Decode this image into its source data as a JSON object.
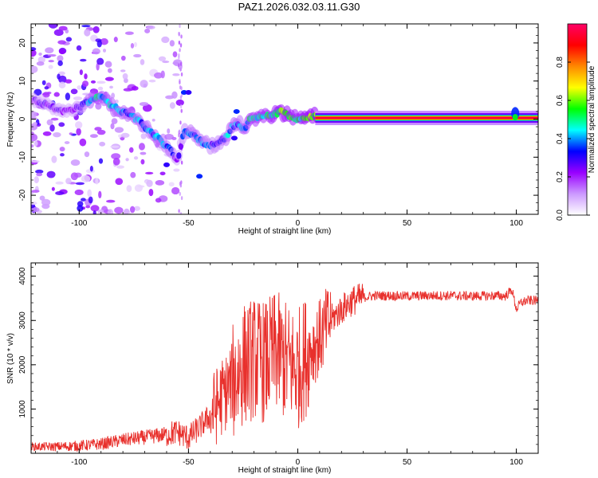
{
  "title": "PAZ1.2026.032.03.11.G30",
  "chart_data": [
    {
      "type": "heatmap",
      "name": "spectrogram",
      "xlabel": "Height of straight line (km)",
      "ylabel": "Frequency (Hz)",
      "xlim": [
        -122,
        110
      ],
      "ylim": [
        -25,
        25
      ],
      "xticks": [
        "-100",
        "-50",
        "0",
        "50",
        "100"
      ],
      "xtick_values": [
        -100,
        -50,
        0,
        50,
        100
      ],
      "yticks": [
        "20",
        "10",
        "0",
        "-10",
        "-20"
      ],
      "ytick_values": [
        20,
        10,
        0,
        -10,
        -20
      ],
      "colorbar": {
        "label": "Normalized spectral amplitude",
        "range": [
          0,
          1
        ],
        "ticks": [
          "0.0",
          "0.2",
          "0.4",
          "0.6",
          "0.8"
        ],
        "tick_values": [
          0.0,
          0.2,
          0.4,
          0.6,
          0.8
        ],
        "colors": [
          "#ffffff",
          "#cc99ff",
          "#9900ff",
          "#0000ff",
          "#00ffff",
          "#00ff00",
          "#ffff00",
          "#ff8800",
          "#ff0000",
          "#ff0066"
        ]
      },
      "ridge": {
        "x": [
          -120,
          -112,
          -105,
          -100,
          -95,
          -92,
          -88,
          -84,
          -80,
          -76,
          -72,
          -68,
          -64,
          -60,
          -57,
          -55,
          -52,
          -48,
          -44,
          -40,
          -36,
          -33,
          -30,
          -27,
          -24,
          -22,
          -20,
          -16,
          -12,
          -8,
          -4,
          0,
          4,
          8,
          20,
          40,
          60,
          80,
          97,
          100,
          103,
          110
        ],
        "freq_hz": [
          5,
          3,
          2,
          3,
          5,
          6,
          5,
          3,
          2,
          1,
          -1,
          -3,
          -5,
          -7,
          -9,
          -11,
          -3,
          -4,
          -6,
          -7,
          -6,
          -5,
          -2,
          -1,
          -3,
          0,
          0,
          1,
          1,
          2,
          1,
          0,
          0,
          1,
          0.5,
          0.5,
          0.5,
          0.5,
          0.5,
          0.5,
          0.5,
          0.5
        ],
        "amplitude": [
          0.25,
          0.25,
          0.25,
          0.3,
          0.45,
          0.5,
          0.45,
          0.45,
          0.4,
          0.45,
          0.4,
          0.4,
          0.45,
          0.4,
          0.35,
          0.25,
          0.35,
          0.4,
          0.4,
          0.35,
          0.35,
          0.4,
          0.45,
          0.4,
          0.45,
          0.5,
          0.5,
          0.55,
          0.55,
          0.6,
          0.6,
          0.55,
          0.6,
          0.65,
          0.9,
          0.95,
          0.95,
          0.95,
          0.9,
          0.55,
          0.9,
          0.9
        ]
      }
    },
    {
      "type": "line",
      "name": "snr",
      "xlabel": "Height of straight line (km)",
      "ylabel": "SNR (10 * v/v)",
      "xlim": [
        -122,
        110
      ],
      "ylim": [
        0,
        4300
      ],
      "xticks": [
        "-100",
        "-50",
        "0",
        "50",
        "100"
      ],
      "xtick_values": [
        -100,
        -50,
        0,
        50,
        100
      ],
      "yticks": [
        "4000",
        "3000",
        "2000",
        "1000"
      ],
      "ytick_values": [
        4000,
        3000,
        2000,
        1000
      ],
      "series": [
        {
          "name": "SNR",
          "color": "#e8302c",
          "x": [
            -122,
            -110,
            -100,
            -90,
            -80,
            -70,
            -60,
            -55,
            -50,
            -45,
            -40,
            -35,
            -30,
            -25,
            -20,
            -15,
            -10,
            -5,
            0,
            5,
            10,
            15,
            20,
            25,
            30,
            35,
            40,
            50,
            60,
            70,
            80,
            90,
            95,
            98,
            100,
            102,
            105,
            110
          ],
          "y": [
            150,
            150,
            170,
            210,
            300,
            360,
            430,
            480,
            350,
            580,
            850,
            1250,
            1600,
            2000,
            2150,
            2050,
            2300,
            2050,
            1900,
            2300,
            2600,
            3000,
            3250,
            3450,
            3520,
            3560,
            3560,
            3550,
            3560,
            3560,
            3550,
            3560,
            3550,
            3700,
            3250,
            3400,
            3450,
            3450
          ]
        }
      ]
    }
  ]
}
